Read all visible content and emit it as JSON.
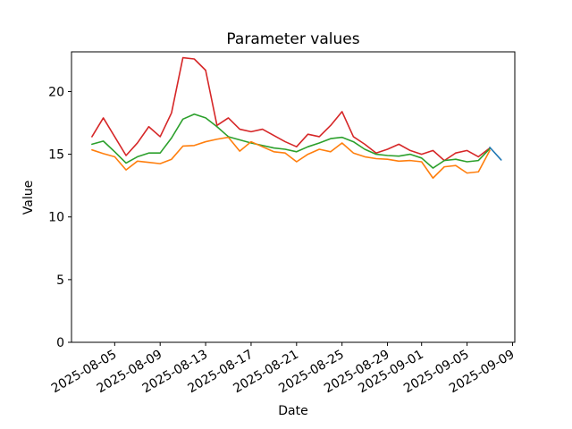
{
  "chart_data": {
    "type": "line",
    "title": "Parameter values",
    "xlabel": "Date",
    "ylabel": "Value",
    "grid": false,
    "legend": "none",
    "axes_color": "#000000",
    "background": "#ffffff",
    "ylim": [
      0,
      23.17
    ],
    "y_ticks": [
      "0",
      "5",
      "10",
      "15",
      "20"
    ],
    "y_tick_values": [
      0,
      5,
      10,
      15,
      20
    ],
    "x_base": "2025-08-03",
    "xlim_days": [
      -1.8,
      37.2
    ],
    "x_ticks": [
      {
        "label": "2025-08-05",
        "date": "2025-08-05"
      },
      {
        "label": "2025-08-09",
        "date": "2025-08-09"
      },
      {
        "label": "2025-08-13",
        "date": "2025-08-13"
      },
      {
        "label": "2025-08-17",
        "date": "2025-08-17"
      },
      {
        "label": "2025-08-21",
        "date": "2025-08-21"
      },
      {
        "label": "2025-08-25",
        "date": "2025-08-25"
      },
      {
        "label": "2025-08-29",
        "date": "2025-08-29"
      },
      {
        "label": "2025-09-01",
        "date": "2025-09-01"
      },
      {
        "label": "2025-09-05",
        "date": "2025-09-05"
      },
      {
        "label": "2025-09-09",
        "date": "2025-09-09"
      }
    ],
    "series": [
      {
        "name": "series-red",
        "color": "#d62728",
        "dates": [
          "2025-08-03",
          "2025-08-04",
          "2025-08-05",
          "2025-08-06",
          "2025-08-07",
          "2025-08-08",
          "2025-08-09",
          "2025-08-10",
          "2025-08-11",
          "2025-08-12",
          "2025-08-13",
          "2025-08-14",
          "2025-08-15",
          "2025-08-16",
          "2025-08-17",
          "2025-08-18",
          "2025-08-19",
          "2025-08-20",
          "2025-08-21",
          "2025-08-22",
          "2025-08-23",
          "2025-08-24",
          "2025-08-25",
          "2025-08-26",
          "2025-08-27",
          "2025-08-28",
          "2025-08-29",
          "2025-08-30",
          "2025-08-31",
          "2025-09-01",
          "2025-09-02",
          "2025-09-03",
          "2025-09-04",
          "2025-09-05",
          "2025-09-06",
          "2025-09-07"
        ],
        "values": [
          16.4,
          17.9,
          16.4,
          14.9,
          15.9,
          17.2,
          16.4,
          18.3,
          22.7,
          22.6,
          21.7,
          17.3,
          17.9,
          17.0,
          16.8,
          17.0,
          16.5,
          16.0,
          15.6,
          16.6,
          16.4,
          17.3,
          18.4,
          16.4,
          15.8,
          15.1,
          15.4,
          15.8,
          15.3,
          15.0,
          15.3,
          14.5,
          15.1,
          15.3,
          14.8,
          15.5
        ]
      },
      {
        "name": "series-green",
        "color": "#2ca02c",
        "dates": [
          "2025-08-03",
          "2025-08-04",
          "2025-08-05",
          "2025-08-06",
          "2025-08-07",
          "2025-08-08",
          "2025-08-09",
          "2025-08-10",
          "2025-08-11",
          "2025-08-12",
          "2025-08-13",
          "2025-08-14",
          "2025-08-15",
          "2025-08-16",
          "2025-08-17",
          "2025-08-18",
          "2025-08-19",
          "2025-08-20",
          "2025-08-21",
          "2025-08-22",
          "2025-08-23",
          "2025-08-24",
          "2025-08-25",
          "2025-08-26",
          "2025-08-27",
          "2025-08-28",
          "2025-08-29",
          "2025-08-30",
          "2025-08-31",
          "2025-09-01",
          "2025-09-02",
          "2025-09-03",
          "2025-09-04",
          "2025-09-05",
          "2025-09-06",
          "2025-09-07"
        ],
        "values": [
          15.8,
          16.05,
          15.2,
          14.3,
          14.8,
          15.1,
          15.1,
          16.3,
          17.8,
          18.2,
          17.9,
          17.2,
          16.4,
          16.15,
          15.9,
          15.7,
          15.5,
          15.4,
          15.2,
          15.6,
          15.9,
          16.25,
          16.35,
          16.0,
          15.4,
          15.0,
          14.9,
          14.85,
          15.0,
          14.7,
          13.9,
          14.5,
          14.6,
          14.4,
          14.5,
          15.45
        ]
      },
      {
        "name": "series-orange",
        "color": "#ff7f0e",
        "dates": [
          "2025-08-03",
          "2025-08-04",
          "2025-08-05",
          "2025-08-06",
          "2025-08-07",
          "2025-08-08",
          "2025-08-09",
          "2025-08-10",
          "2025-08-11",
          "2025-08-12",
          "2025-08-13",
          "2025-08-14",
          "2025-08-15",
          "2025-08-16",
          "2025-08-17",
          "2025-08-18",
          "2025-08-19",
          "2025-08-20",
          "2025-08-21",
          "2025-08-22",
          "2025-08-23",
          "2025-08-24",
          "2025-08-25",
          "2025-08-26",
          "2025-08-27",
          "2025-08-28",
          "2025-08-29",
          "2025-08-30",
          "2025-08-31",
          "2025-09-01",
          "2025-09-02",
          "2025-09-03",
          "2025-09-04",
          "2025-09-05",
          "2025-09-06",
          "2025-09-07"
        ],
        "values": [
          15.35,
          15.05,
          14.8,
          13.75,
          14.45,
          14.35,
          14.25,
          14.6,
          15.65,
          15.7,
          16.0,
          16.2,
          16.35,
          15.25,
          16.0,
          15.6,
          15.2,
          15.1,
          14.4,
          15.0,
          15.4,
          15.2,
          15.9,
          15.1,
          14.8,
          14.65,
          14.6,
          14.45,
          14.5,
          14.4,
          13.1,
          14.0,
          14.1,
          13.5,
          13.6,
          15.3
        ]
      },
      {
        "name": "series-blue",
        "color": "#1f77b4",
        "dates": [
          "2025-09-07",
          "2025-09-08"
        ],
        "values": [
          15.55,
          14.55
        ]
      }
    ]
  }
}
